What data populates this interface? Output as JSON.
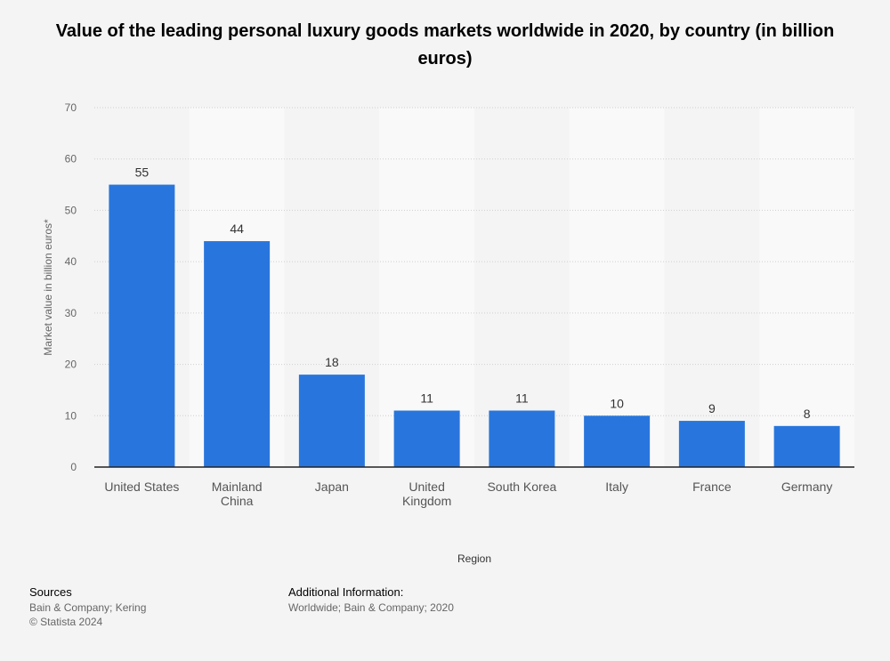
{
  "chart_data": {
    "type": "bar",
    "title": "Value of the leading personal luxury goods markets worldwide in 2020, by country (in billion euros)",
    "xlabel": "Region",
    "ylabel": "Market value in billion euros*",
    "categories": [
      [
        "United States"
      ],
      [
        "Mainland",
        "China"
      ],
      [
        "Japan"
      ],
      [
        "United",
        "Kingdom"
      ],
      [
        "South Korea"
      ],
      [
        "Italy"
      ],
      [
        "France"
      ],
      [
        "Germany"
      ]
    ],
    "values": [
      55,
      44,
      18,
      11,
      11,
      10,
      9,
      8
    ],
    "ylim": [
      0,
      70
    ],
    "yticks": [
      0,
      10,
      20,
      30,
      40,
      50,
      60,
      70
    ],
    "grid": true,
    "bar_color": "#2876dd"
  },
  "footer": {
    "sources_heading": "Sources",
    "sources_text": "Bain & Company; Kering",
    "copyright": "© Statista 2024",
    "additional_heading": "Additional Information:",
    "additional_text": "Worldwide; Bain & Company; 2020"
  }
}
